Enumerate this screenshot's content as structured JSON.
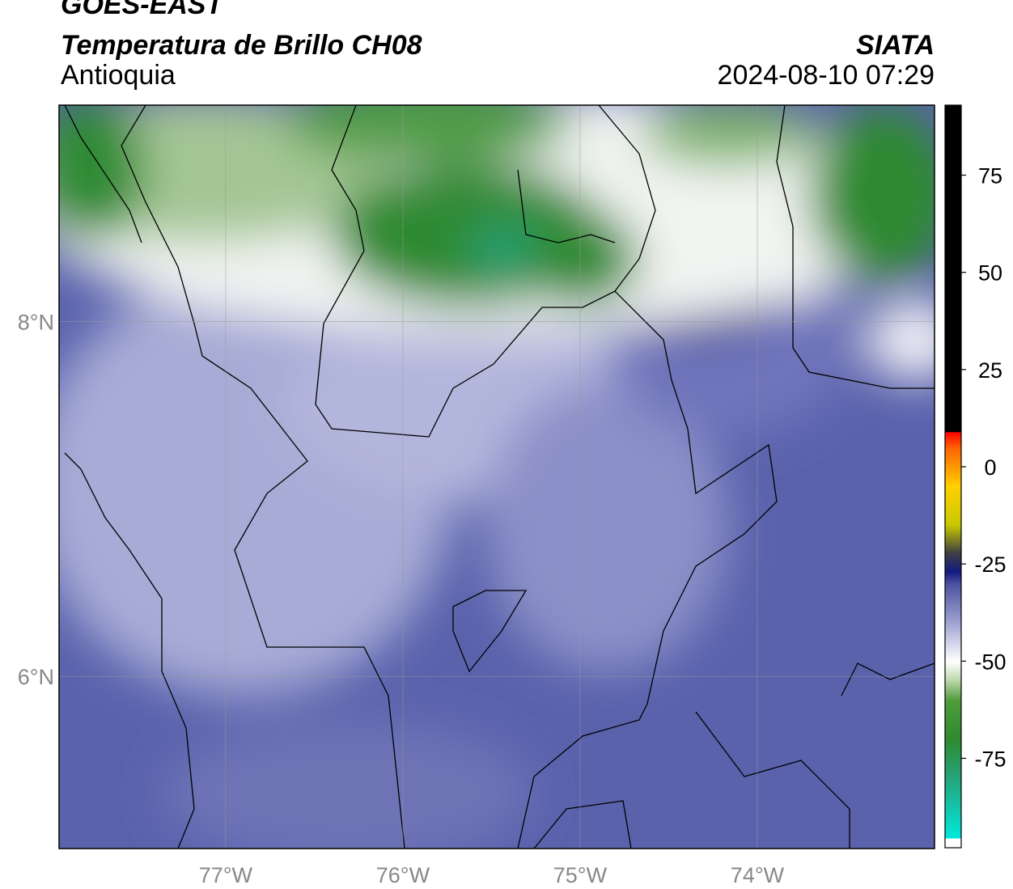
{
  "header": {
    "satellite": "GOES-EAST",
    "product": "Temperatura de Brillo CH08",
    "region": "Antioquia",
    "source": "SIATA",
    "timestamp": "2024-08-10 07:29"
  },
  "chart_data": {
    "type": "map",
    "xlim": [
      -77.94,
      -73.0
    ],
    "ylim": [
      5.03,
      9.22
    ],
    "xticks": [
      {
        "value": -77,
        "label": "77°W"
      },
      {
        "value": -76,
        "label": "76°W"
      },
      {
        "value": -75,
        "label": "75°W"
      },
      {
        "value": -74,
        "label": "74°W"
      }
    ],
    "yticks": [
      {
        "value": 8,
        "label": "8°N"
      },
      {
        "value": 6,
        "label": "6°N"
      }
    ],
    "grid": true,
    "colorbar": {
      "lim": [
        -98,
        93
      ],
      "ticks": [
        -75,
        -50,
        -25,
        0,
        25,
        50,
        75
      ],
      "stops": [
        {
          "value": -98,
          "color": "#ffffff"
        },
        {
          "value": -95.5,
          "color": "#ffffff"
        },
        {
          "value": -95.5,
          "color": "#00e8dc"
        },
        {
          "value": -80,
          "color": "#26a37a"
        },
        {
          "value": -70,
          "color": "#2e8b2e"
        },
        {
          "value": -60,
          "color": "#4f9c3c"
        },
        {
          "value": -55,
          "color": "#bcd6ab"
        },
        {
          "value": -50,
          "color": "#ffffff"
        },
        {
          "value": -40,
          "color": "#9ea2d0"
        },
        {
          "value": -30,
          "color": "#4a50a0"
        },
        {
          "value": -27,
          "color": "#141a80"
        },
        {
          "value": -22,
          "color": "#404040"
        },
        {
          "value": -15,
          "color": "#c8c800"
        },
        {
          "value": -5,
          "color": "#ffd000"
        },
        {
          "value": 5,
          "color": "#ff6000"
        },
        {
          "value": 9,
          "color": "#ff0000"
        },
        {
          "value": 9,
          "color": "#000000"
        },
        {
          "value": 93,
          "color": "#000000"
        }
      ]
    }
  }
}
